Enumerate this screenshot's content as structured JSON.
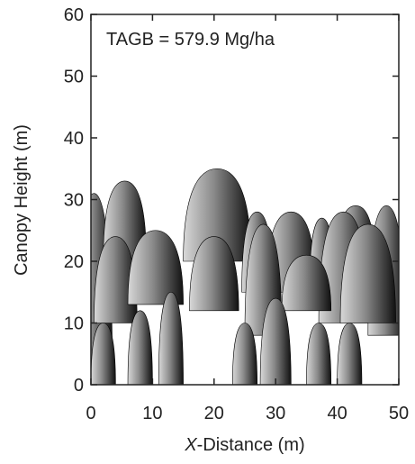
{
  "chart_data": {
    "type": "canopy",
    "annotation": "TAGB = 579.9 Mg/ha",
    "xlabel": [
      "X",
      "-Distance (m)"
    ],
    "ylabel": "Canopy Height (m)",
    "xlim": [
      0,
      50
    ],
    "ylim": [
      0,
      60
    ],
    "xticks": [
      0,
      10,
      20,
      30,
      40,
      50
    ],
    "yticks": [
      0,
      10,
      20,
      30,
      40,
      50,
      60
    ],
    "color": "#888888",
    "crowns": [
      {
        "x": 0.5,
        "top": 31,
        "base": 0,
        "half_width": 3
      },
      {
        "x": 5.5,
        "top": 33,
        "base": 20,
        "half_width": 3.5
      },
      {
        "x": 20.5,
        "top": 35,
        "base": 20,
        "half_width": 5.5
      },
      {
        "x": 27,
        "top": 28,
        "base": 15,
        "half_width": 2.5
      },
      {
        "x": 32.5,
        "top": 28,
        "base": 15,
        "half_width": 4
      },
      {
        "x": 37.5,
        "top": 27,
        "base": 15,
        "half_width": 2
      },
      {
        "x": 43,
        "top": 29,
        "base": 20,
        "half_width": 3
      },
      {
        "x": 48,
        "top": 29,
        "base": 8,
        "half_width": 3
      },
      {
        "x": 41,
        "top": 28,
        "base": 10,
        "half_width": 4
      },
      {
        "x": 4,
        "top": 24,
        "base": 10,
        "half_width": 3.5
      },
      {
        "x": 10.5,
        "top": 25,
        "base": 13,
        "half_width": 4.5
      },
      {
        "x": 20,
        "top": 24,
        "base": 12,
        "half_width": 4
      },
      {
        "x": 28,
        "top": 26,
        "base": 8,
        "half_width": 3
      },
      {
        "x": 45,
        "top": 26,
        "base": 10,
        "half_width": 4.5
      },
      {
        "x": 35,
        "top": 21,
        "base": 12,
        "half_width": 4
      },
      {
        "x": 13,
        "top": 15,
        "base": 0,
        "half_width": 2
      },
      {
        "x": 30,
        "top": 14,
        "base": 0,
        "half_width": 2.5
      },
      {
        "x": 8,
        "top": 12,
        "base": 0,
        "half_width": 2
      },
      {
        "x": 2,
        "top": 10,
        "base": 0,
        "half_width": 2
      },
      {
        "x": 25,
        "top": 10,
        "base": 0,
        "half_width": 2
      },
      {
        "x": 37,
        "top": 10,
        "base": 0,
        "half_width": 2
      },
      {
        "x": 42,
        "top": 10,
        "base": 0,
        "half_width": 2
      }
    ]
  }
}
